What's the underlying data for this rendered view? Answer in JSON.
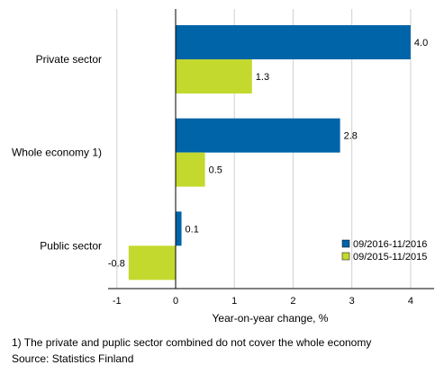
{
  "chart_data": {
    "type": "bar",
    "orientation": "horizontal",
    "categories": [
      "Private sector",
      "Whole economy 1)",
      "Public sector"
    ],
    "series": [
      {
        "name": "09/2016-11/2016",
        "color": "#0064a8",
        "values": [
          4.0,
          2.8,
          0.1
        ]
      },
      {
        "name": "09/2015-11/2015",
        "color": "#c4d92e",
        "values": [
          1.3,
          0.5,
          -0.8
        ]
      }
    ],
    "value_labels": [
      [
        "4.0",
        "2.8",
        "0.1"
      ],
      [
        "1.3",
        "0.5",
        "-0.8"
      ]
    ],
    "xlabel": "Year-on-year change, %",
    "xlim": [
      -1.15,
      4.4
    ],
    "xticks": [
      -1,
      0,
      1,
      2,
      3,
      4
    ],
    "grid": true,
    "legend_position": "bottom-right"
  },
  "footnotes": {
    "note": "1) The private and puplic sector combined do not cover the whole economy",
    "source": "Source: Statistics Finland"
  }
}
